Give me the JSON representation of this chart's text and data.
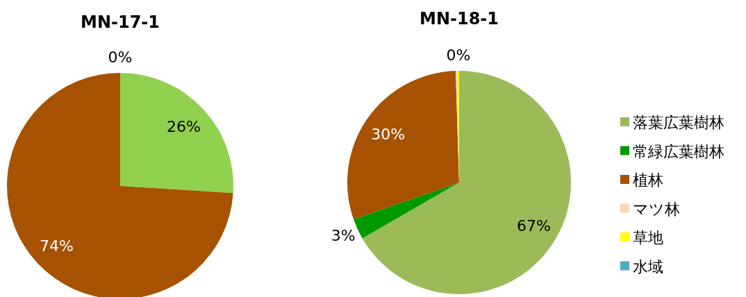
{
  "chart_data": [
    {
      "type": "pie",
      "title": "MN-17-1",
      "categories": [
        null,
        null,
        null
      ],
      "values": [
        26,
        74,
        0
      ],
      "colors": [
        "#92d050",
        "#a65200",
        "#fcd5b5"
      ],
      "value_labels": [
        "26%",
        "74%",
        "0%"
      ],
      "legend": false
    },
    {
      "type": "pie",
      "title": "MN-18-1",
      "categories": [
        "落葉広葉樹林",
        "常緑広葉樹林",
        "植林",
        "マツ林",
        "草地",
        "水域"
      ],
      "values": [
        67,
        3,
        30,
        0.3,
        0.2,
        0
      ],
      "colors": [
        "#9bbb59",
        "#009900",
        "#a65200",
        "#fcd5b5",
        "#ffff00",
        "#4bacc6"
      ],
      "value_labels": [
        "67%",
        "3%",
        "30%",
        null,
        "0%",
        null
      ],
      "legend": "right"
    }
  ]
}
